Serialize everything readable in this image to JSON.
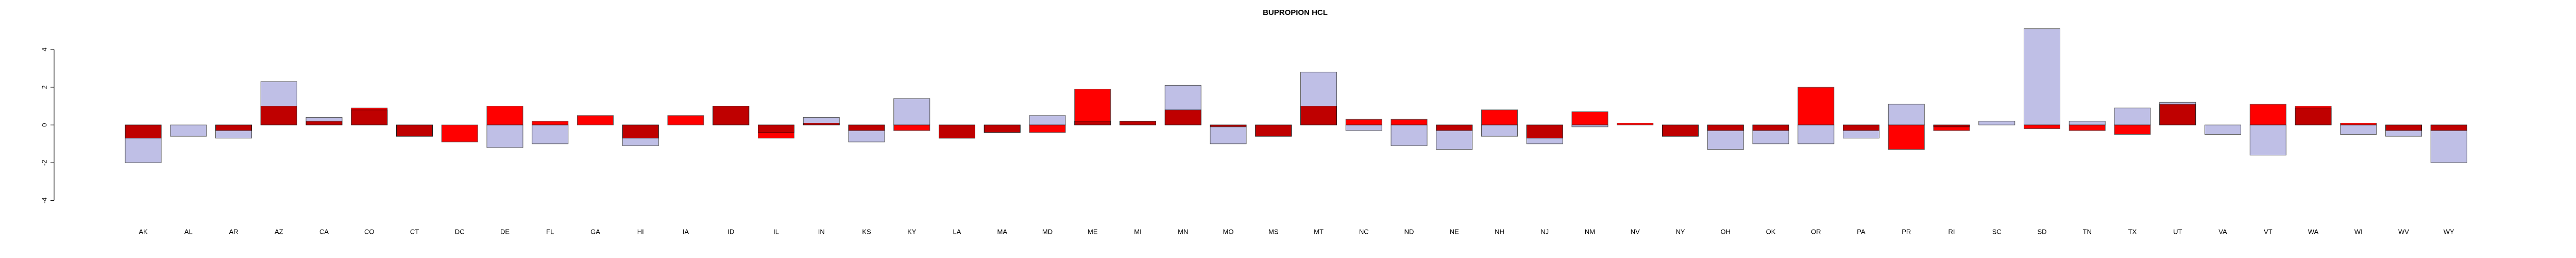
{
  "chart_data": {
    "type": "bar",
    "title": "BUPROPION HCL",
    "categories": [
      "AK",
      "AL",
      "AR",
      "AZ",
      "CA",
      "CO",
      "CT",
      "DC",
      "DE",
      "FL",
      "GA",
      "HI",
      "IA",
      "ID",
      "IL",
      "IN",
      "KS",
      "KY",
      "LA",
      "MA",
      "MD",
      "ME",
      "MI",
      "MN",
      "MO",
      "MS",
      "MT",
      "NC",
      "ND",
      "NE",
      "NH",
      "NJ",
      "NM",
      "NV",
      "NY",
      "OH",
      "OK",
      "OR",
      "PA",
      "PR",
      "RI",
      "SC",
      "SD",
      "TN",
      "TX",
      "UT",
      "VA",
      "VT",
      "WA",
      "WI",
      "WV",
      "WY"
    ],
    "series": [
      {
        "color": "#bfbfe6",
        "values": [
          -2.0,
          -0.6,
          -0.7,
          2.3,
          0.4,
          0.8,
          -0.6,
          0,
          -1.2,
          -1.0,
          0,
          -1.1,
          0,
          1.0,
          -0.4,
          0.4,
          -0.9,
          1.4,
          -0.7,
          -0.4,
          0.5,
          0.2,
          0.2,
          2.1,
          -1.0,
          -0.6,
          2.8,
          -0.3,
          -1.1,
          -1.3,
          -0.6,
          -1.0,
          -0.1,
          0,
          -0.6,
          -1.3,
          -1.0,
          -1.0,
          -0.7,
          1.1,
          -0.1,
          0.2,
          5.1,
          0.2,
          0.9,
          1.2,
          -0.5,
          -1.6,
          0.9,
          -0.5,
          -0.6,
          -2.0
        ]
      },
      {
        "color": "#ff0000",
        "values": [
          -0.7,
          0,
          -0.3,
          1.0,
          0.2,
          0.9,
          -0.6,
          -0.9,
          1.0,
          0.2,
          0.5,
          -0.7,
          0.5,
          1.0,
          -0.7,
          0.1,
          -0.3,
          -0.3,
          -0.7,
          -0.4,
          -0.4,
          1.9,
          0.2,
          0.8,
          -0.1,
          -0.6,
          1.0,
          0.3,
          0.3,
          -0.3,
          0.8,
          -0.7,
          0.7,
          0.1,
          -0.6,
          -0.3,
          -0.3,
          2.0,
          -0.3,
          -1.3,
          -0.3,
          0,
          -0.2,
          -0.3,
          -0.5,
          1.1,
          0,
          1.1,
          1.0,
          0.1,
          -0.3,
          -0.3
        ]
      }
    ],
    "ylim": [
      -5,
      5.2
    ],
    "yticks": [
      -4,
      -2,
      0,
      2,
      4
    ]
  }
}
